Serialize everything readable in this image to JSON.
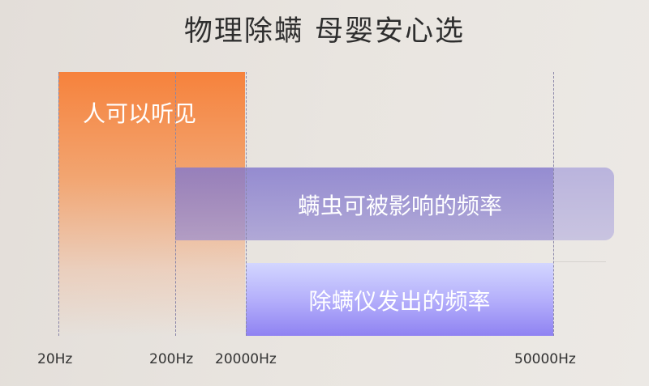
{
  "title": "物理除螨 母婴安心选",
  "bars": {
    "human": {
      "label": "人可以听见",
      "color": "#f6823c"
    },
    "mite": {
      "label": "螨虫可被影响的频率",
      "color": "#8278cd"
    },
    "device": {
      "label": "除螨仪发出的频率",
      "color": "#8f82f2"
    }
  },
  "ticks": [
    "20Hz",
    "200Hz",
    "20000Hz",
    "50000Hz"
  ]
}
